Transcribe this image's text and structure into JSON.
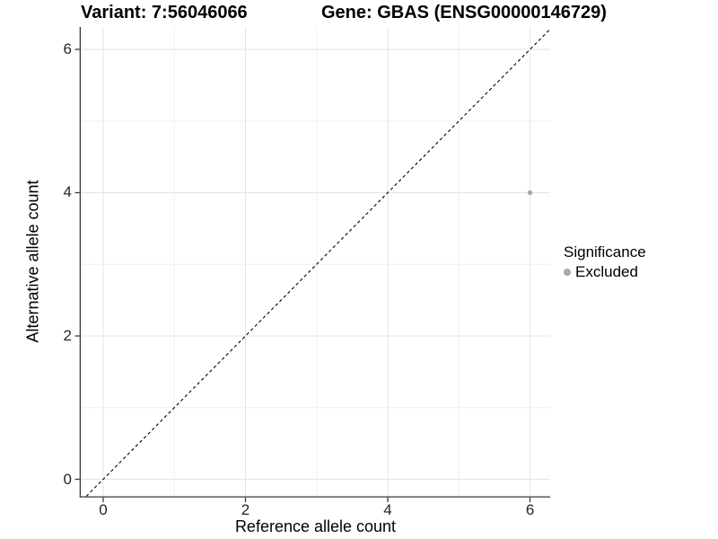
{
  "chart_data": {
    "type": "scatter",
    "title_left": "Variant: 7:56046066",
    "title_right": "Gene: GBAS (ENSG00000146729)",
    "xlabel": "Reference allele count",
    "ylabel": "Alternative allele count",
    "xlim": [
      -0.315,
      6.283
    ],
    "ylim": [
      -0.238,
      6.313
    ],
    "x_major_ticks": [
      0,
      2,
      4,
      6
    ],
    "y_major_ticks": [
      0,
      2,
      4,
      6
    ],
    "x_minor_ticks": [
      1,
      3,
      5
    ],
    "y_minor_ticks": [
      1,
      3,
      5
    ],
    "grid": true,
    "reference_line": {
      "type": "identity",
      "slope": 1,
      "intercept": 0,
      "style": "dashed"
    },
    "series": [
      {
        "name": "Excluded",
        "points": [
          {
            "x": 6,
            "y": 4
          }
        ]
      }
    ],
    "legend": {
      "title": "Significance",
      "position": "right",
      "entries": [
        {
          "label": "Excluded",
          "color": "#a9a9a9"
        }
      ]
    },
    "style": {
      "grid_major_color": "#e4e4e4",
      "grid_minor_color": "#efefef",
      "axis_line_color": "#3a3a3a",
      "ref_line_color": "#000000",
      "point_color": "#a9a9a9",
      "background": "#ffffff"
    }
  }
}
